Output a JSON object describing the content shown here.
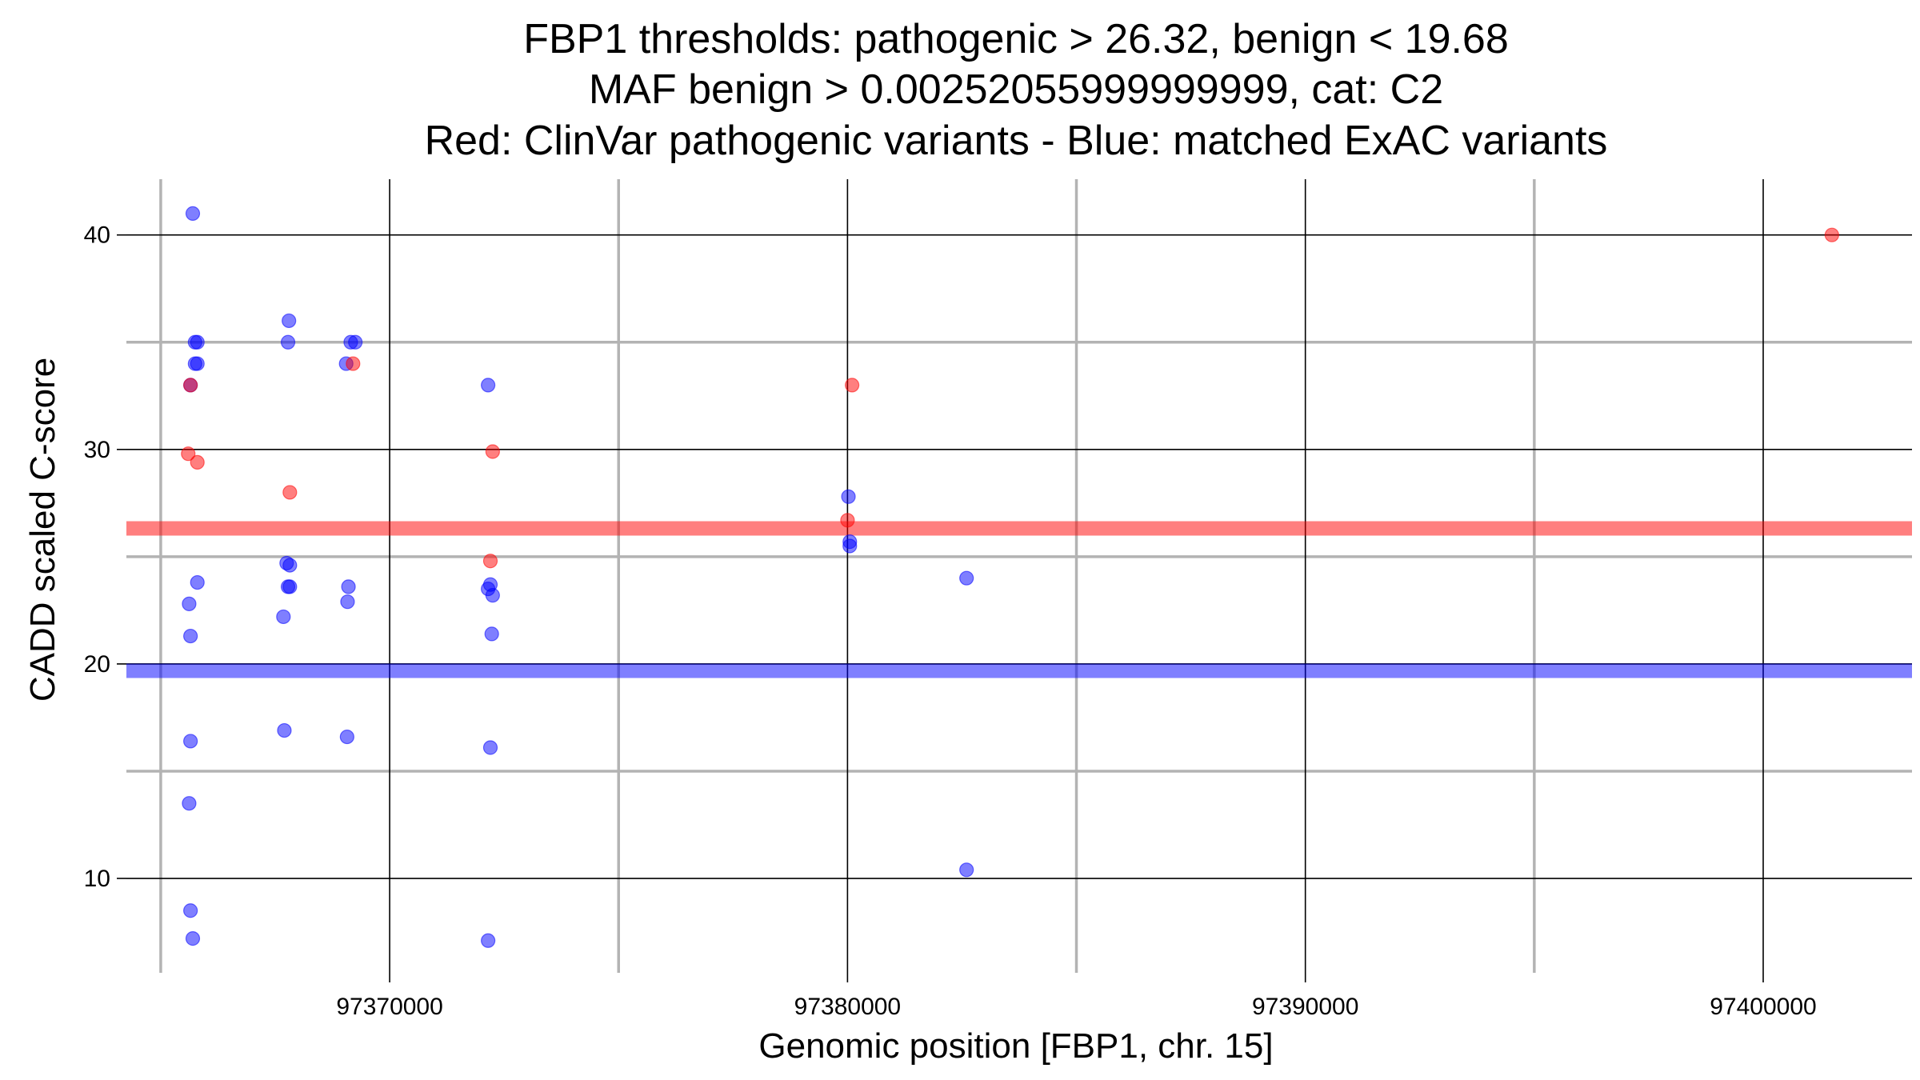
{
  "chart_data": {
    "type": "scatter",
    "title": [
      "FBP1 thresholds: pathogenic > 26.32, benign < 19.68",
      "MAF benign > 0.00252055999999999, cat: C2",
      "Red: ClinVar pathogenic variants - Blue: matched ExAC variants"
    ],
    "xlabel": "Genomic position [FBP1, chr. 15]",
    "ylabel": "CADD scaled C-score",
    "xlim": [
      97364250,
      97403250
    ],
    "ylim": [
      5.6,
      42.6
    ],
    "x_ticks": [
      97370000,
      97380000,
      97390000,
      97400000
    ],
    "x_tick_labels": [
      "97370000",
      "97380000",
      "97390000",
      "97400000"
    ],
    "x_minor_grid": [
      97365000,
      97375000,
      97385000,
      97395000
    ],
    "y_ticks": [
      10,
      20,
      30,
      40
    ],
    "y_tick_labels": [
      "10",
      "20",
      "30",
      "40"
    ],
    "y_minor_grid": [
      15,
      25,
      35
    ],
    "grid": true,
    "colors": {
      "pathogenic": "#ff0000",
      "benign": "#0000ff",
      "major_grid": "#000000",
      "minor_grid": "#b3b3b3"
    },
    "thresholds": [
      {
        "value": 26.32,
        "color": "#ff0000"
      },
      {
        "value": 19.68,
        "color": "#0000ff"
      }
    ],
    "series": [
      {
        "color": "#0000ff",
        "points": [
          {
            "x": 97365700,
            "y": 41
          },
          {
            "x": 97365800,
            "y": 35
          },
          {
            "x": 97365750,
            "y": 35
          },
          {
            "x": 97365800,
            "y": 34
          },
          {
            "x": 97365750,
            "y": 34
          },
          {
            "x": 97365650,
            "y": 33
          },
          {
            "x": 97365800,
            "y": 23.8
          },
          {
            "x": 97365620,
            "y": 22.8
          },
          {
            "x": 97365650,
            "y": 21.3
          },
          {
            "x": 97365650,
            "y": 16.4
          },
          {
            "x": 97365620,
            "y": 13.5
          },
          {
            "x": 97365650,
            "y": 8.5
          },
          {
            "x": 97365700,
            "y": 7.2
          },
          {
            "x": 97367800,
            "y": 36
          },
          {
            "x": 97367780,
            "y": 35
          },
          {
            "x": 97367750,
            "y": 24.7
          },
          {
            "x": 97367820,
            "y": 24.6
          },
          {
            "x": 97367780,
            "y": 23.6
          },
          {
            "x": 97367820,
            "y": 23.6
          },
          {
            "x": 97367680,
            "y": 22.2
          },
          {
            "x": 97367700,
            "y": 16.9
          },
          {
            "x": 97369150,
            "y": 35
          },
          {
            "x": 97369250,
            "y": 35
          },
          {
            "x": 97369050,
            "y": 34
          },
          {
            "x": 97369100,
            "y": 23.6
          },
          {
            "x": 97369080,
            "y": 22.9
          },
          {
            "x": 97369070,
            "y": 16.6
          },
          {
            "x": 97372150,
            "y": 33
          },
          {
            "x": 97372200,
            "y": 23.7
          },
          {
            "x": 97372150,
            "y": 23.5
          },
          {
            "x": 97372250,
            "y": 23.2
          },
          {
            "x": 97372230,
            "y": 21.4
          },
          {
            "x": 97372200,
            "y": 16.1
          },
          {
            "x": 97372150,
            "y": 7.1
          },
          {
            "x": 97380020,
            "y": 27.8
          },
          {
            "x": 97380050,
            "y": 25.7
          },
          {
            "x": 97380050,
            "y": 25.5
          },
          {
            "x": 97382600,
            "y": 24
          },
          {
            "x": 97382600,
            "y": 10.4
          }
        ]
      },
      {
        "color": "#ff0000",
        "points": [
          {
            "x": 97365650,
            "y": 33
          },
          {
            "x": 97365600,
            "y": 29.8
          },
          {
            "x": 97365800,
            "y": 29.4
          },
          {
            "x": 97367820,
            "y": 28
          },
          {
            "x": 97369200,
            "y": 34
          },
          {
            "x": 97372250,
            "y": 29.9
          },
          {
            "x": 97372200,
            "y": 24.8
          },
          {
            "x": 97380100,
            "y": 33
          },
          {
            "x": 97380000,
            "y": 26.7
          },
          {
            "x": 97401500,
            "y": 40
          }
        ]
      }
    ]
  }
}
